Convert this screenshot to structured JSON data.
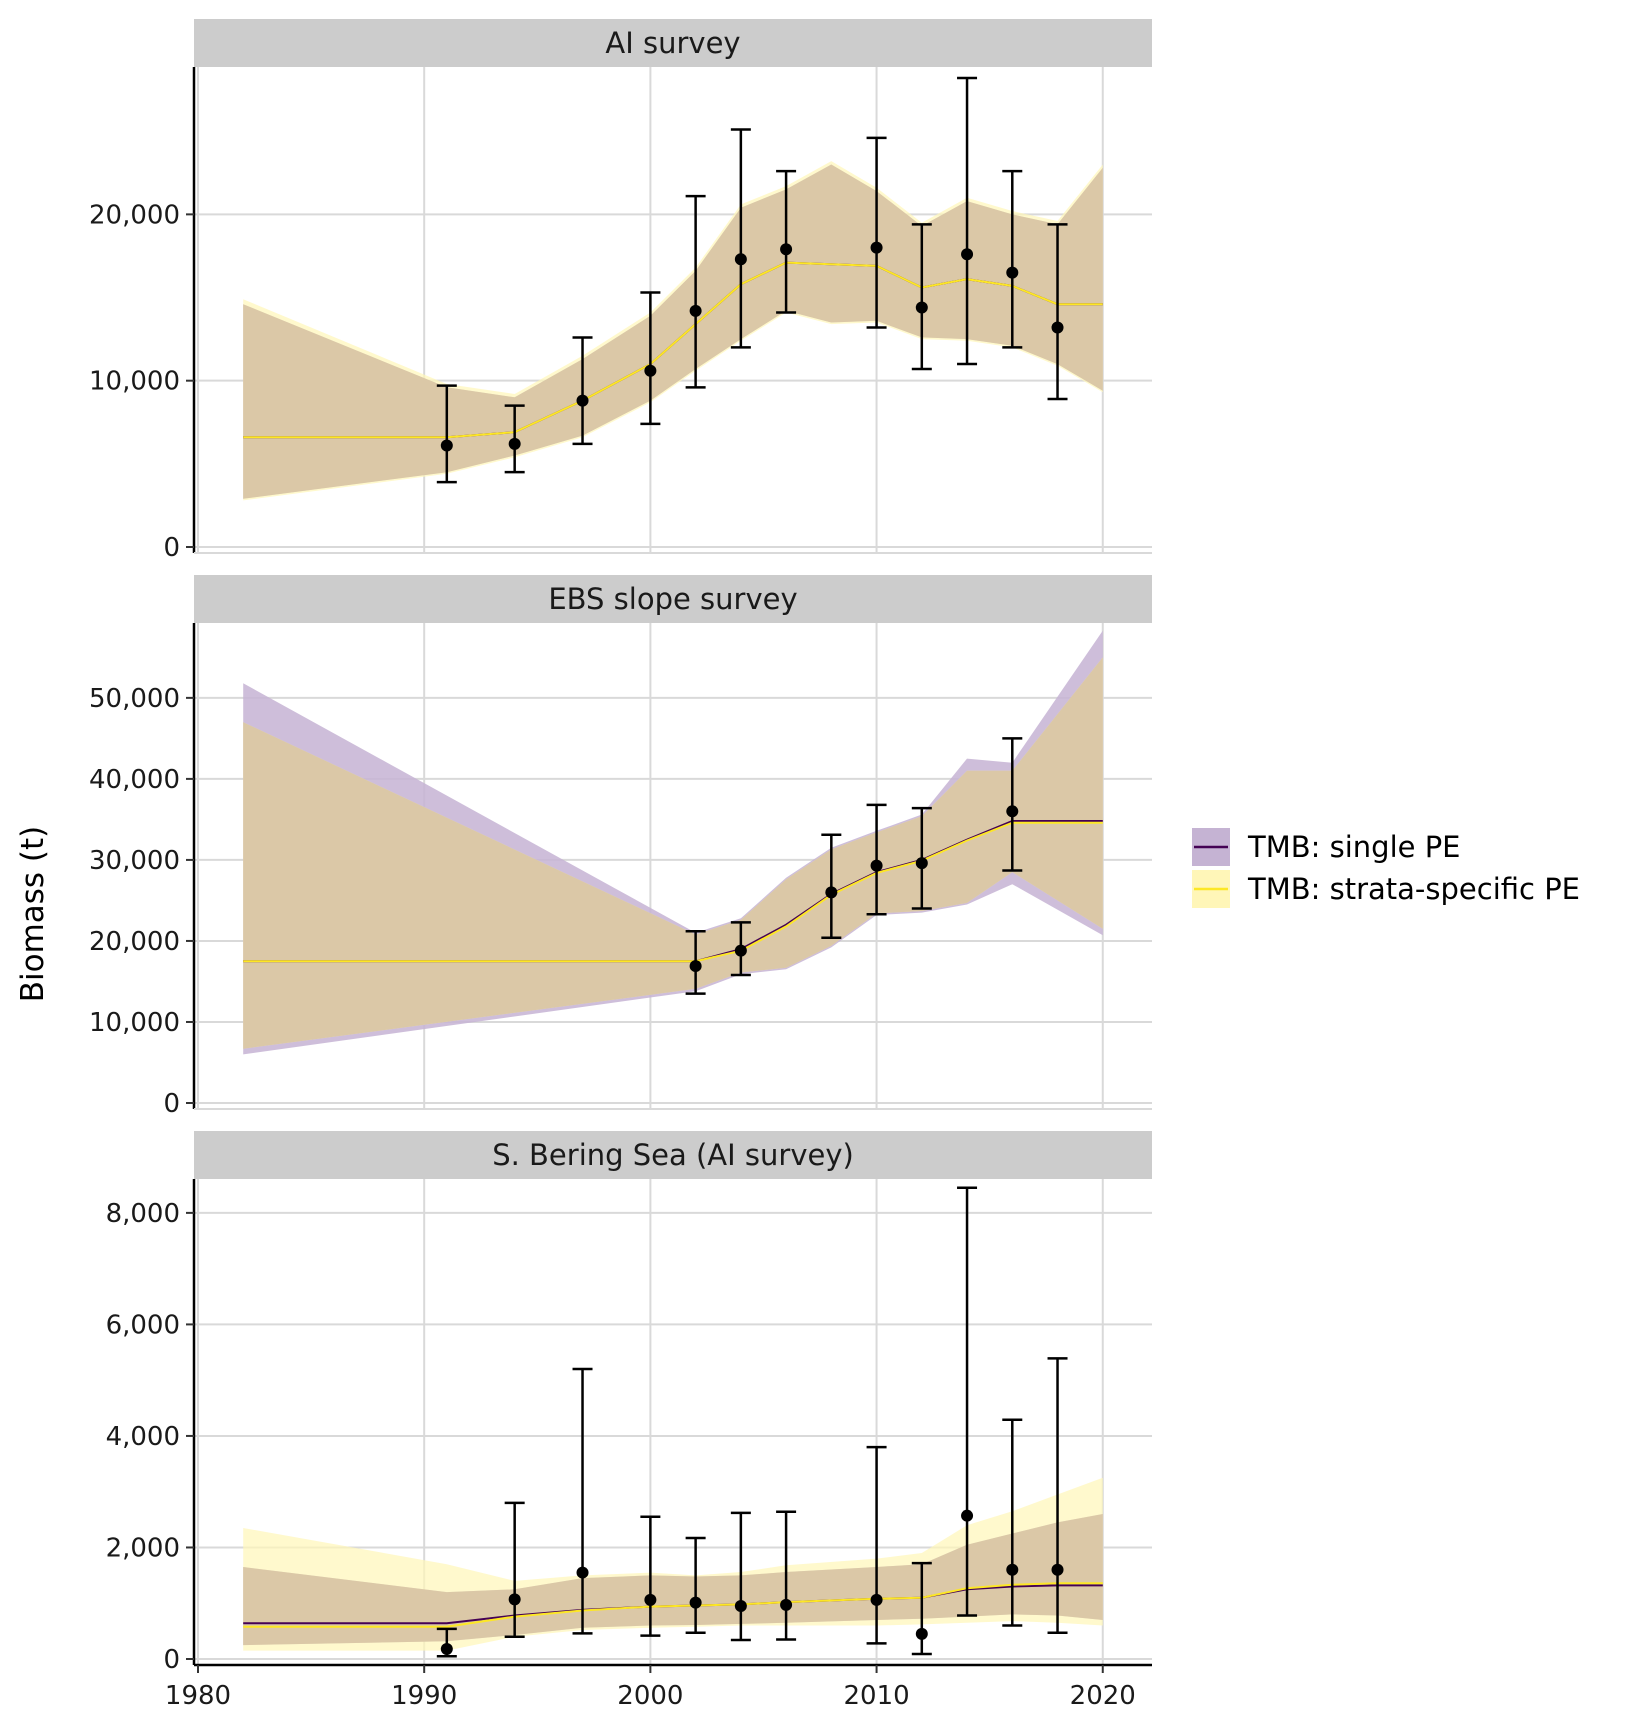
{
  "chart_data": {
    "type": "line",
    "ylabel": "Biomass (t)",
    "xlabel": "",
    "xlim": [
      1980,
      2022
    ],
    "x_ticks": [
      1980,
      1990,
      2000,
      2010,
      2020
    ],
    "x_tick_labels": [
      "1980",
      "1990",
      "2000",
      "2010",
      "2020"
    ],
    "grid": true,
    "legend_position": "right",
    "legend": [
      {
        "name": "TMB: single PE",
        "line_color": "#440154",
        "fill_color": "#C5B3D3"
      },
      {
        "name": "TMB: strata-specific PE",
        "line_color": "#FDE725",
        "fill_color": "#FFF6B8"
      }
    ],
    "panels": [
      {
        "title": "AI survey",
        "ylim": [
          0,
          28500
        ],
        "y_ticks": [
          0,
          10000,
          20000
        ],
        "y_tick_labels": [
          "0",
          "10,000",
          "20,000"
        ],
        "series": [
          {
            "name": "TMB: single PE",
            "x": [
              1982,
              1991,
              1994,
              1997,
              2000,
              2002,
              2004,
              2006,
              2008,
              2010,
              2012,
              2014,
              2016,
              2018,
              2020
            ],
            "y": [
              6600,
              6600,
              6900,
              8800,
              11000,
              13400,
              15800,
              17100,
              17000,
              16900,
              15600,
              16100,
              15700,
              14600,
              14600
            ],
            "lower": [
              2900,
              4500,
              5500,
              6700,
              8800,
              10700,
              12500,
              14200,
              13500,
              13600,
              12600,
              12500,
              12100,
              11000,
              9400
            ],
            "upper": [
              14600,
              9600,
              9000,
              11300,
              13900,
              16600,
              20400,
              21500,
              23000,
              21400,
              19300,
              20800,
              20000,
              19400,
              22800
            ]
          },
          {
            "name": "TMB: strata-specific PE",
            "x": [
              1982,
              1991,
              1994,
              1997,
              2000,
              2002,
              2004,
              2006,
              2008,
              2010,
              2012,
              2014,
              2016,
              2018,
              2020
            ],
            "y": [
              6600,
              6600,
              6900,
              8800,
              11000,
              13400,
              15800,
              17100,
              17000,
              16900,
              15600,
              16100,
              15700,
              14600,
              14600
            ],
            "lower": [
              2800,
              4400,
              5400,
              6600,
              8700,
              10600,
              12400,
              14100,
              13400,
              13500,
              12500,
              12400,
              12000,
              10900,
              9300
            ],
            "upper": [
              14900,
              9800,
              9200,
              11500,
              14100,
              16800,
              20600,
              21700,
              23200,
              21600,
              19500,
              21000,
              20200,
              19600,
              23000
            ]
          }
        ],
        "observations": {
          "x": [
            1991,
            1994,
            1997,
            2000,
            2002,
            2004,
            2006,
            2010,
            2012,
            2014,
            2016,
            2018
          ],
          "y": [
            6100,
            6200,
            8800,
            10600,
            14200,
            17300,
            17900,
            18000,
            14400,
            17600,
            16500,
            13200
          ],
          "lower": [
            3900,
            4500,
            6200,
            7400,
            9600,
            12000,
            14100,
            13200,
            10700,
            11000,
            12000,
            8900
          ],
          "upper": [
            9700,
            8500,
            12600,
            15300,
            21100,
            25100,
            22600,
            24600,
            19400,
            28200,
            22600,
            19400
          ]
        }
      },
      {
        "title": "EBS slope survey",
        "ylim": [
          0,
          58500
        ],
        "y_ticks": [
          0,
          10000,
          20000,
          30000,
          40000,
          50000
        ],
        "y_tick_labels": [
          "0",
          "10,000",
          "20,000",
          "30,000",
          "40,000",
          "50,000"
        ],
        "series": [
          {
            "name": "TMB: single PE",
            "x": [
              1982,
              2002,
              2004,
              2006,
              2008,
              2010,
              2012,
              2014,
              2016,
              2020
            ],
            "y": [
              17500,
              17500,
              19000,
              22000,
              25800,
              28500,
              30000,
              32500,
              34800,
              34800
            ],
            "lower": [
              6000,
              13800,
              15900,
              16500,
              19200,
              23200,
              23500,
              24500,
              27000,
              20700
            ],
            "upper": [
              51800,
              21000,
              22800,
              27800,
              31500,
              33600,
              35600,
              42500,
              42000,
              58300
            ]
          },
          {
            "name": "TMB: strata-specific PE",
            "x": [
              1982,
              2002,
              2004,
              2006,
              2008,
              2010,
              2012,
              2014,
              2016,
              2020
            ],
            "y": [
              17500,
              17500,
              18800,
              21800,
              25700,
              28400,
              29900,
              32400,
              34600,
              34600
            ],
            "lower": [
              6700,
              14100,
              16100,
              16700,
              19400,
              23400,
              23700,
              24700,
              28500,
              21500
            ],
            "upper": [
              47000,
              20800,
              22600,
              27600,
              31300,
              33400,
              35400,
              41000,
              41000,
              55000
            ]
          }
        ],
        "observations": {
          "x": [
            2002,
            2004,
            2008,
            2010,
            2012,
            2016
          ],
          "y": [
            16900,
            18800,
            26000,
            29300,
            29600,
            36000
          ],
          "lower": [
            13500,
            15800,
            20400,
            23300,
            24000,
            28700
          ],
          "upper": [
            21200,
            22300,
            33100,
            36800,
            36400,
            45000
          ]
        }
      },
      {
        "title": "S. Bering Sea (AI survey)",
        "ylim": [
          0,
          8500
        ],
        "y_ticks": [
          0,
          2000,
          4000,
          6000,
          8000
        ],
        "y_tick_labels": [
          "0",
          "2,000",
          "4,000",
          "6,000",
          "8,000"
        ],
        "series": [
          {
            "name": "TMB: single PE",
            "x": [
              1982,
              1991,
              1994,
              1997,
              2000,
              2002,
              2004,
              2006,
              2010,
              2012,
              2014,
              2016,
              2018,
              2020
            ],
            "y": [
              640,
              640,
              780,
              880,
              940,
              960,
              980,
              1020,
              1080,
              1100,
              1250,
              1300,
              1320,
              1320
            ],
            "lower": [
              250,
              320,
              430,
              560,
              600,
              610,
              630,
              650,
              700,
              720,
              760,
              800,
              780,
              700
            ],
            "upper": [
              1650,
              1200,
              1250,
              1450,
              1500,
              1480,
              1500,
              1560,
              1650,
              1700,
              2050,
              2250,
              2450,
              2600
            ]
          },
          {
            "name": "TMB: strata-specific PE",
            "x": [
              1982,
              1991,
              1994,
              1997,
              2000,
              2002,
              2004,
              2006,
              2010,
              2012,
              2014,
              2016,
              2018,
              2020
            ],
            "y": [
              580,
              580,
              760,
              870,
              940,
              960,
              980,
              1020,
              1080,
              1100,
              1270,
              1330,
              1360,
              1360
            ],
            "lower": [
              150,
              150,
              400,
              520,
              560,
              580,
              600,
              600,
              600,
              620,
              650,
              680,
              650,
              600
            ],
            "upper": [
              2350,
              1700,
              1400,
              1500,
              1550,
              1500,
              1560,
              1680,
              1800,
              1900,
              2400,
              2650,
              2950,
              3250
            ]
          }
        ],
        "observations": {
          "x": [
            1991,
            1994,
            1997,
            2000,
            2002,
            2004,
            2006,
            2010,
            2012,
            2014,
            2016,
            2018
          ],
          "y": [
            180,
            1070,
            1550,
            1060,
            1010,
            950,
            970,
            1060,
            450,
            2570,
            1600,
            1600
          ],
          "lower": [
            50,
            400,
            460,
            420,
            470,
            340,
            350,
            280,
            90,
            780,
            600,
            470
          ],
          "upper": [
            540,
            2800,
            5200,
            2550,
            2170,
            2620,
            2640,
            3800,
            1720,
            8450,
            4290,
            5390
          ]
        }
      }
    ]
  }
}
